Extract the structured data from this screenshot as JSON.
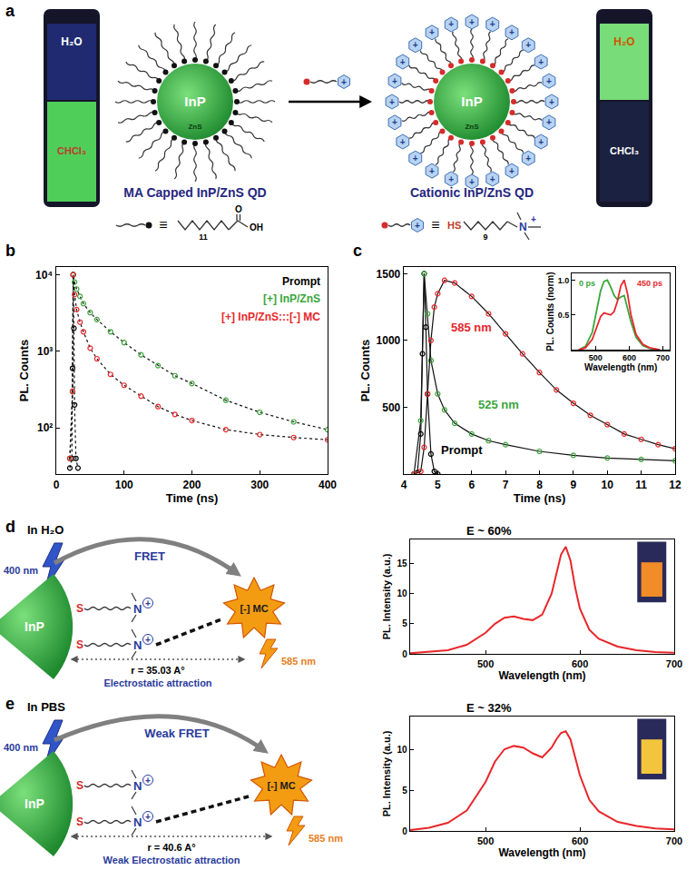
{
  "panel_a": {
    "panel_label": "a",
    "left": {
      "vial_top": "H₂O",
      "vial_bottom": "CHCl₃",
      "core": "InP",
      "shell": "ZnS",
      "name": "MA Capped InP/ZnS QD",
      "ligand": {
        "equals": "≡",
        "subscript": "11",
        "carbonyl": "O",
        "acid": "OH"
      }
    },
    "right": {
      "vial_top": "H₂O",
      "vial_bottom": "CHCl₃",
      "core": "InP",
      "shell": "ZnS",
      "name": "Cationic InP/ZnS QD",
      "ligand": {
        "equals": "≡",
        "thiol": "HS",
        "subscript": "9",
        "amine": "N",
        "charge": "+"
      }
    }
  },
  "chart_data": [
    {
      "panel_label": "b",
      "type": "scatter",
      "x_label": "Time (ns)",
      "y_label": "PL. Counts",
      "log": "y",
      "xlim": [
        0,
        400
      ],
      "xticks": [
        0,
        100,
        200,
        300,
        400
      ],
      "ylim": [
        25,
        12600
      ],
      "yticks": [
        {
          "value": 100,
          "label": "10²"
        },
        {
          "value": 1000,
          "label": "10³"
        },
        {
          "value": 10000,
          "label": "10⁴"
        }
      ],
      "legend": "upper right",
      "marker": "open circle",
      "line_style": "dotted",
      "series": [
        {
          "name": "Prompt",
          "color": "#000000",
          "x": [
            20,
            23,
            24,
            25,
            26,
            27,
            29,
            32
          ],
          "values": [
            30,
            40,
            600,
            10000,
            2000,
            200,
            40,
            30
          ]
        },
        {
          "name": "[+] InP/ZnS",
          "color": "#3aa53a",
          "x": [
            20,
            24,
            25,
            27,
            30,
            35,
            40,
            50,
            60,
            80,
            100,
            125,
            150,
            175,
            200,
            250,
            300,
            350,
            400
          ],
          "values": [
            40,
            300,
            10000,
            8000,
            6500,
            5200,
            4200,
            3200,
            2600,
            1800,
            1300,
            900,
            650,
            480,
            380,
            230,
            160,
            120,
            95
          ]
        },
        {
          "name": "[+] InP/ZnS:::[-] MC",
          "color": "#e8262a",
          "x": [
            20,
            24,
            25,
            27,
            30,
            35,
            40,
            50,
            60,
            80,
            100,
            125,
            150,
            175,
            200,
            250,
            300,
            350,
            400
          ],
          "values": [
            40,
            300,
            10000,
            5500,
            3500,
            2400,
            1800,
            1100,
            800,
            500,
            360,
            260,
            190,
            150,
            125,
            95,
            82,
            75,
            70
          ]
        }
      ]
    },
    {
      "panel_label": "c",
      "type": "scatter",
      "x_label": "Time (ns)",
      "y_label": "PL. Counts",
      "xlim": [
        4,
        12
      ],
      "xticks": [
        4,
        5,
        6,
        7,
        8,
        9,
        10,
        11,
        12
      ],
      "ylim": [
        0,
        1550
      ],
      "yticks": [
        500,
        1000,
        1500
      ],
      "legend": "inline",
      "marker": "open circle",
      "line_style": "solid",
      "series": [
        {
          "name": "Prompt",
          "color": "#000000",
          "x": [
            4.3,
            4.4,
            4.5,
            4.55,
            4.6,
            4.65,
            4.7,
            4.8,
            4.9,
            5.0
          ],
          "values": [
            0,
            10,
            300,
            900,
            1500,
            1100,
            600,
            150,
            20,
            0
          ]
        },
        {
          "name": "525 nm",
          "color": "#3aa53a",
          "x": [
            4.3,
            4.5,
            4.6,
            4.7,
            4.8,
            5.0,
            5.2,
            5.5,
            6.0,
            6.5,
            7.0,
            8.0,
            9.0,
            10.0,
            11.0,
            12.0
          ],
          "values": [
            0,
            400,
            1500,
            1200,
            850,
            600,
            480,
            380,
            300,
            250,
            220,
            170,
            140,
            120,
            110,
            100
          ]
        },
        {
          "name": "585 nm",
          "color": "#e8262a",
          "x": [
            4.3,
            4.5,
            4.6,
            4.7,
            4.8,
            4.9,
            5.0,
            5.2,
            5.5,
            6.0,
            6.5,
            7.0,
            7.5,
            8.0,
            8.5,
            9.0,
            9.5,
            10.0,
            10.5,
            11.0,
            11.5,
            12.0
          ],
          "values": [
            0,
            20,
            200,
            600,
            1000,
            1250,
            1350,
            1450,
            1430,
            1330,
            1200,
            1050,
            900,
            760,
            630,
            530,
            440,
            370,
            300,
            260,
            220,
            190
          ]
        }
      ],
      "inset": {
        "type": "line",
        "x_label": "Wavelength (nm)",
        "y_label": "PL. Counts (norm)",
        "xlim": [
          430,
          720
        ],
        "xticks": [
          500,
          600,
          700
        ],
        "ylim": [
          0,
          1.1
        ],
        "yticks": [
          0.5,
          {
            "value": 1,
            "label": "1.0"
          }
        ],
        "legend": "inline",
        "series": [
          {
            "name": "0 ps",
            "color": "#3aa53a",
            "x": [
              450,
              470,
              490,
              505,
              515,
              525,
              535,
              545,
              555,
              565,
              575,
              585,
              595,
              605,
              620,
              640,
              660,
              690
            ],
            "values": [
              0,
              0.05,
              0.25,
              0.6,
              0.85,
              0.98,
              1.0,
              0.9,
              0.78,
              0.72,
              0.76,
              0.78,
              0.6,
              0.4,
              0.18,
              0.06,
              0.02,
              0
            ]
          },
          {
            "name": "450 ps",
            "color": "#e8262a",
            "x": [
              450,
              470,
              490,
              505,
              515,
              525,
              535,
              545,
              555,
              565,
              575,
              585,
              595,
              605,
              620,
              640,
              660,
              690
            ],
            "values": [
              0,
              0.03,
              0.15,
              0.35,
              0.48,
              0.53,
              0.52,
              0.5,
              0.55,
              0.7,
              0.92,
              1.0,
              0.8,
              0.5,
              0.22,
              0.08,
              0.03,
              0
            ]
          }
        ]
      }
    },
    {
      "type": "line",
      "x_label": "Wavelength (nm)",
      "y_label": "PL. Intensity (a.u.)",
      "xlim": [
        420,
        700
      ],
      "xticks": [
        500,
        600,
        700
      ],
      "ylim": [
        0,
        19
      ],
      "yticks": [
        0,
        5,
        10,
        15
      ],
      "annotations": [
        "E ~ 60%"
      ],
      "color": "#e8262a",
      "x": [
        420,
        440,
        460,
        480,
        500,
        510,
        520,
        530,
        540,
        550,
        560,
        570,
        575,
        580,
        585,
        590,
        595,
        600,
        610,
        620,
        640,
        660,
        680,
        700
      ],
      "values": [
        0.1,
        0.3,
        0.6,
        1.5,
        3.5,
        5,
        6,
        6.2,
        5.8,
        5.6,
        6.5,
        10,
        13.5,
        16.5,
        17.8,
        15.5,
        11,
        7.5,
        4,
        2.5,
        1.2,
        0.6,
        0.3,
        0.2
      ]
    },
    {
      "type": "line",
      "x_label": "Wavelength (nm)",
      "y_label": "PL. Intensity (a.u.)",
      "xlim": [
        420,
        700
      ],
      "xticks": [
        500,
        600,
        700
      ],
      "ylim": [
        0,
        14
      ],
      "yticks": [
        0,
        5,
        10
      ],
      "annotations": [
        "E ~ 32%"
      ],
      "color": "#e8262a",
      "x": [
        420,
        440,
        460,
        480,
        500,
        510,
        520,
        530,
        540,
        550,
        560,
        570,
        575,
        580,
        585,
        590,
        595,
        600,
        610,
        620,
        640,
        660,
        680,
        700
      ],
      "values": [
        0.1,
        0.4,
        1.0,
        2.5,
        6,
        8.5,
        10,
        10.4,
        10.2,
        9.5,
        9,
        10.2,
        11.2,
        12,
        12.2,
        11.2,
        9,
        6.8,
        3.8,
        2.4,
        1.1,
        0.6,
        0.3,
        0.2
      ]
    }
  ],
  "panel_d": {
    "panel_label": "d",
    "medium": "In H₂O",
    "excitation": "400 nm",
    "transfer": "FRET",
    "core": "InP",
    "linker": "S",
    "amine": "N",
    "charge": "+",
    "acceptor": "[-] MC",
    "emission": "585 nm",
    "distance": "r = 35.03 A°",
    "interaction": "Electrostatic attraction"
  },
  "panel_e": {
    "panel_label": "e",
    "medium": "In PBS",
    "excitation": "400 nm",
    "transfer": "Weak FRET",
    "core": "InP",
    "linker": "S",
    "amine": "N",
    "charge": "+",
    "acceptor": "[-] MC",
    "emission": "585 nm",
    "distance": "r = 40.6 A°",
    "interaction": "Weak Electrostatic attraction"
  }
}
